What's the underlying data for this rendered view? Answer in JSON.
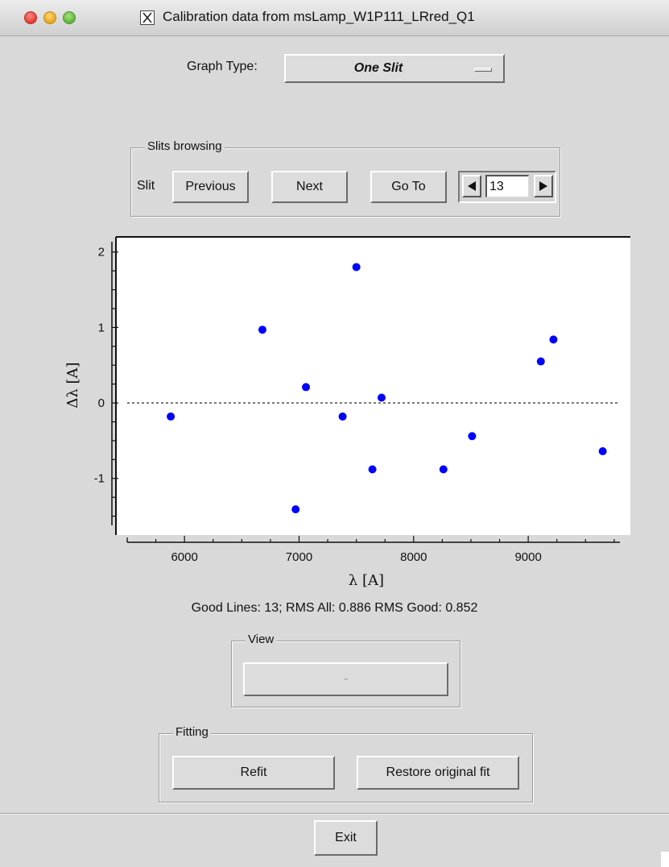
{
  "window": {
    "title": "Calibration data from msLamp_W1P111_LRred_Q1"
  },
  "graph_type": {
    "label": "Graph Type:",
    "value": "One Slit"
  },
  "slits_browsing": {
    "group_title": "Slits browsing",
    "slit_label": "Slit",
    "previous_label": "Previous",
    "next_label": "Next",
    "goto_label": "Go To",
    "slit_number": "13"
  },
  "chart_data": {
    "type": "scatter",
    "xlabel": "λ [A]",
    "ylabel": "Δλ [A]",
    "xlim": [
      5500,
      9800
    ],
    "ylim": [
      -1.75,
      2.2
    ],
    "xticks": [
      6000,
      7000,
      8000,
      9000
    ],
    "yticks": [
      2,
      1,
      0,
      -1
    ],
    "reference_line_y": 0,
    "marker_color": "#0000ff",
    "points": [
      {
        "x": 5880,
        "y": -0.18
      },
      {
        "x": 6680,
        "y": 0.97
      },
      {
        "x": 6970,
        "y": -1.41
      },
      {
        "x": 7060,
        "y": 0.21
      },
      {
        "x": 7380,
        "y": -0.18
      },
      {
        "x": 7500,
        "y": 1.8
      },
      {
        "x": 7640,
        "y": -0.88
      },
      {
        "x": 7720,
        "y": 0.07
      },
      {
        "x": 8260,
        "y": -0.88
      },
      {
        "x": 8510,
        "y": -0.44
      },
      {
        "x": 9110,
        "y": 0.55
      },
      {
        "x": 9220,
        "y": 0.84
      },
      {
        "x": 9650,
        "y": -0.64
      }
    ]
  },
  "stats": {
    "text": "Good Lines:  13; RMS All:  0.886  RMS Good:  0.852"
  },
  "view": {
    "group_title": "View",
    "button_label": "-"
  },
  "fitting": {
    "group_title": "Fitting",
    "refit_label": "Refit",
    "restore_label": "Restore original fit"
  },
  "exit_label": "Exit"
}
